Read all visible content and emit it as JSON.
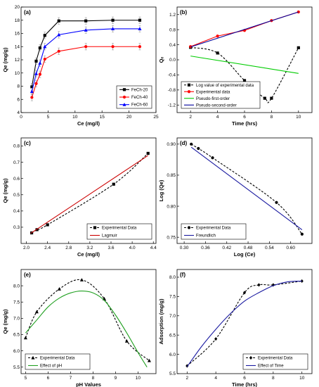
{
  "colors": {
    "black": "#000000",
    "red": "#ff0000",
    "blue": "#0000ff",
    "green": "#00cc00",
    "navy": "#00009c",
    "darkred": "#cc0000",
    "darkblue": "#1a1aa0",
    "olive": "#22a022"
  },
  "chart_data": [
    {
      "panel": "(a)",
      "type": "line",
      "xlabel": "Ce (mg/l)",
      "ylabel": "Qe (mg/g)",
      "xlim": [
        0,
        25
      ],
      "ylim": [
        4,
        20
      ],
      "xticks": [
        0,
        5,
        10,
        15,
        20,
        25
      ],
      "yticks": [
        4,
        6,
        8,
        10,
        12,
        14,
        16,
        18,
        20
      ],
      "legend_position": "bottom-right",
      "series": [
        {
          "name": "FeCh-20",
          "color": "#000000",
          "marker": "square",
          "style": "solid",
          "err": 0.5,
          "points": [
            [
              2.0,
              7.9
            ],
            [
              2.8,
              11.8
            ],
            [
              3.5,
              13.8
            ],
            [
              4.4,
              15.7
            ],
            [
              7.0,
              17.9
            ],
            [
              12.0,
              17.9
            ],
            [
              17.0,
              18.0
            ],
            [
              22.0,
              18.0
            ]
          ]
        },
        {
          "name": "FeCh-40",
          "color": "#ff0000",
          "marker": "circle",
          "style": "solid",
          "err": 0.5,
          "points": [
            [
              2.0,
              6.3
            ],
            [
              2.8,
              8.4
            ],
            [
              3.5,
              9.8
            ],
            [
              4.4,
              12.1
            ],
            [
              7.0,
              13.3
            ],
            [
              12.0,
              14.0
            ],
            [
              17.0,
              14.0
            ],
            [
              22.0,
              14.0
            ]
          ]
        },
        {
          "name": "FeCh-60",
          "color": "#0000ff",
          "marker": "triangle",
          "style": "solid",
          "err": 0.5,
          "points": [
            [
              2.0,
              7.2
            ],
            [
              2.8,
              9.9
            ],
            [
              3.5,
              11.5
            ],
            [
              4.4,
              14.0
            ],
            [
              7.0,
              15.8
            ],
            [
              12.0,
              16.5
            ],
            [
              17.0,
              16.7
            ],
            [
              22.0,
              16.7
            ]
          ]
        }
      ]
    },
    {
      "panel": "(b)",
      "type": "line",
      "xlabel": "Time (hrs)",
      "ylabel": "Qₑ",
      "xlim": [
        1,
        11
      ],
      "ylim": [
        -1.4,
        1.4
      ],
      "xticks": [
        2,
        4,
        6,
        8,
        10
      ],
      "yticks": [
        -1.2,
        -0.8,
        -0.4,
        0.0,
        0.4,
        0.8,
        1.2
      ],
      "legend_position": "bottom-left",
      "series": [
        {
          "name": "Log value of experimental data",
          "color": "#000000",
          "marker": "square",
          "style": "dashed",
          "points": [
            [
              2,
              0.33
            ],
            [
              4,
              0.18
            ],
            [
              6,
              -0.55
            ],
            [
              7.5,
              -1.02
            ],
            [
              8,
              -1.02
            ],
            [
              10,
              0.32
            ]
          ]
        },
        {
          "name": "Experimental data",
          "color": "#ff0000",
          "marker": "circle",
          "style": "solid",
          "points": [
            [
              2,
              0.35
            ],
            [
              4,
              0.63
            ],
            [
              6,
              0.78
            ],
            [
              8,
              1.04
            ],
            [
              10,
              1.27
            ]
          ]
        },
        {
          "name": "Pseudo-first-order",
          "color": "#00cc00",
          "marker": "none",
          "style": "solid",
          "points": [
            [
              2,
              0.1
            ],
            [
              10,
              -0.36
            ]
          ]
        },
        {
          "name": "Pseudo-second-order",
          "color": "#00009c",
          "marker": "none",
          "style": "solid",
          "points": [
            [
              2,
              0.34
            ],
            [
              10,
              1.27
            ]
          ]
        }
      ]
    },
    {
      "panel": "(c)",
      "type": "line",
      "xlabel": "Ce (mg/l)",
      "ylabel": "Qe (mg/g)",
      "xlim": [
        1.9,
        4.45
      ],
      "ylim": [
        0.2,
        0.85
      ],
      "xticks": [
        2.0,
        2.4,
        2.8,
        3.2,
        3.6,
        4.0,
        4.4
      ],
      "yticks": [
        0.3,
        0.4,
        0.5,
        0.6,
        0.7,
        0.8
      ],
      "legend_position": "bottom-right",
      "series": [
        {
          "name": "Experimental Data",
          "color": "#000000",
          "marker": "square",
          "style": "dashed",
          "points": [
            [
              2.1,
              0.265
            ],
            [
              2.2,
              0.285
            ],
            [
              2.4,
              0.315
            ],
            [
              3.65,
              0.565
            ],
            [
              4.3,
              0.755
            ]
          ]
        },
        {
          "name": "Lagmuir",
          "color": "#cc0000",
          "marker": "none",
          "style": "solid",
          "points": [
            [
              2.08,
              0.262
            ],
            [
              4.3,
              0.742
            ]
          ]
        }
      ]
    },
    {
      "panel": "(d)",
      "type": "line",
      "xlabel": "Log (Ce)",
      "ylabel": "Log (Qe)",
      "xlim": [
        0.28,
        0.66
      ],
      "ylim": [
        0.74,
        0.91
      ],
      "xticks": [
        0.3,
        0.36,
        0.42,
        0.48,
        0.54,
        0.6
      ],
      "yticks": [
        0.75,
        0.8,
        0.85,
        0.9
      ],
      "legend_position": "bottom-left",
      "series": [
        {
          "name": "Experimental Data",
          "color": "#000000",
          "marker": "circle",
          "style": "dashed",
          "points": [
            [
              0.32,
              0.9
            ],
            [
              0.34,
              0.893
            ],
            [
              0.38,
              0.878
            ],
            [
              0.56,
              0.806
            ],
            [
              0.632,
              0.755
            ]
          ]
        },
        {
          "name": "Freundlich",
          "color": "#1a1aa0",
          "marker": "none",
          "style": "solid",
          "points": [
            [
              0.32,
              0.895
            ],
            [
              0.632,
              0.762
            ]
          ]
        }
      ]
    },
    {
      "panel": "(e)",
      "type": "line",
      "xlabel": "pH Values",
      "ylabel": "Qe (mg/g)",
      "xlim": [
        4.8,
        10.8
      ],
      "ylim": [
        5.3,
        8.5
      ],
      "xticks": [
        5,
        6,
        7,
        8,
        9,
        10
      ],
      "yticks": [
        5.5,
        6.0,
        6.5,
        7.0,
        7.5,
        8.0
      ],
      "legend_position": "bottom-left",
      "series": [
        {
          "name": "Experimental Data",
          "color": "#000000",
          "marker": "triangle",
          "style": "dashed",
          "points": [
            [
              5.0,
              6.4
            ],
            [
              5.5,
              7.2
            ],
            [
              6.5,
              7.9
            ],
            [
              7.5,
              8.18
            ],
            [
              8.5,
              7.6
            ],
            [
              9.5,
              6.3
            ],
            [
              10.5,
              5.7
            ]
          ]
        },
        {
          "name": "Effect of pH",
          "color": "#22a022",
          "marker": "none",
          "style": "solid",
          "points": [
            [
              5.0,
              6.55
            ],
            [
              5.5,
              6.95
            ],
            [
              6.0,
              7.35
            ],
            [
              6.5,
              7.62
            ],
            [
              7.0,
              7.78
            ],
            [
              7.5,
              7.84
            ],
            [
              8.0,
              7.78
            ],
            [
              8.5,
              7.55
            ],
            [
              9.0,
              7.1
            ],
            [
              9.5,
              6.55
            ],
            [
              10.0,
              5.95
            ],
            [
              10.4,
              5.5
            ]
          ]
        }
      ]
    },
    {
      "panel": "(f)",
      "type": "line",
      "xlabel": "Time (hrs)",
      "ylabel": "Adsorption (mg/g)",
      "xlim": [
        1.3,
        10.7
      ],
      "ylim": [
        5.5,
        8.2
      ],
      "xticks": [
        2,
        4,
        6,
        8,
        10
      ],
      "yticks": [
        5.5,
        6.0,
        6.5,
        7.0,
        7.5,
        8.0
      ],
      "legend_position": "bottom-right",
      "series": [
        {
          "name": "Experimental Data",
          "color": "#000000",
          "marker": "diamond",
          "style": "dashed",
          "points": [
            [
              2,
              5.7
            ],
            [
              4,
              6.4
            ],
            [
              6,
              7.6
            ],
            [
              7,
              7.8
            ],
            [
              8,
              7.8
            ],
            [
              10,
              7.9
            ]
          ]
        },
        {
          "name": "Effect of Time",
          "color": "#1a1aa0",
          "marker": "none",
          "style": "solid",
          "points": [
            [
              2,
              5.68
            ],
            [
              3,
              6.2
            ],
            [
              4,
              6.65
            ],
            [
              5,
              7.05
            ],
            [
              6,
              7.38
            ],
            [
              7,
              7.6
            ],
            [
              8,
              7.78
            ],
            [
              9,
              7.88
            ],
            [
              10,
              7.9
            ]
          ]
        }
      ]
    }
  ]
}
